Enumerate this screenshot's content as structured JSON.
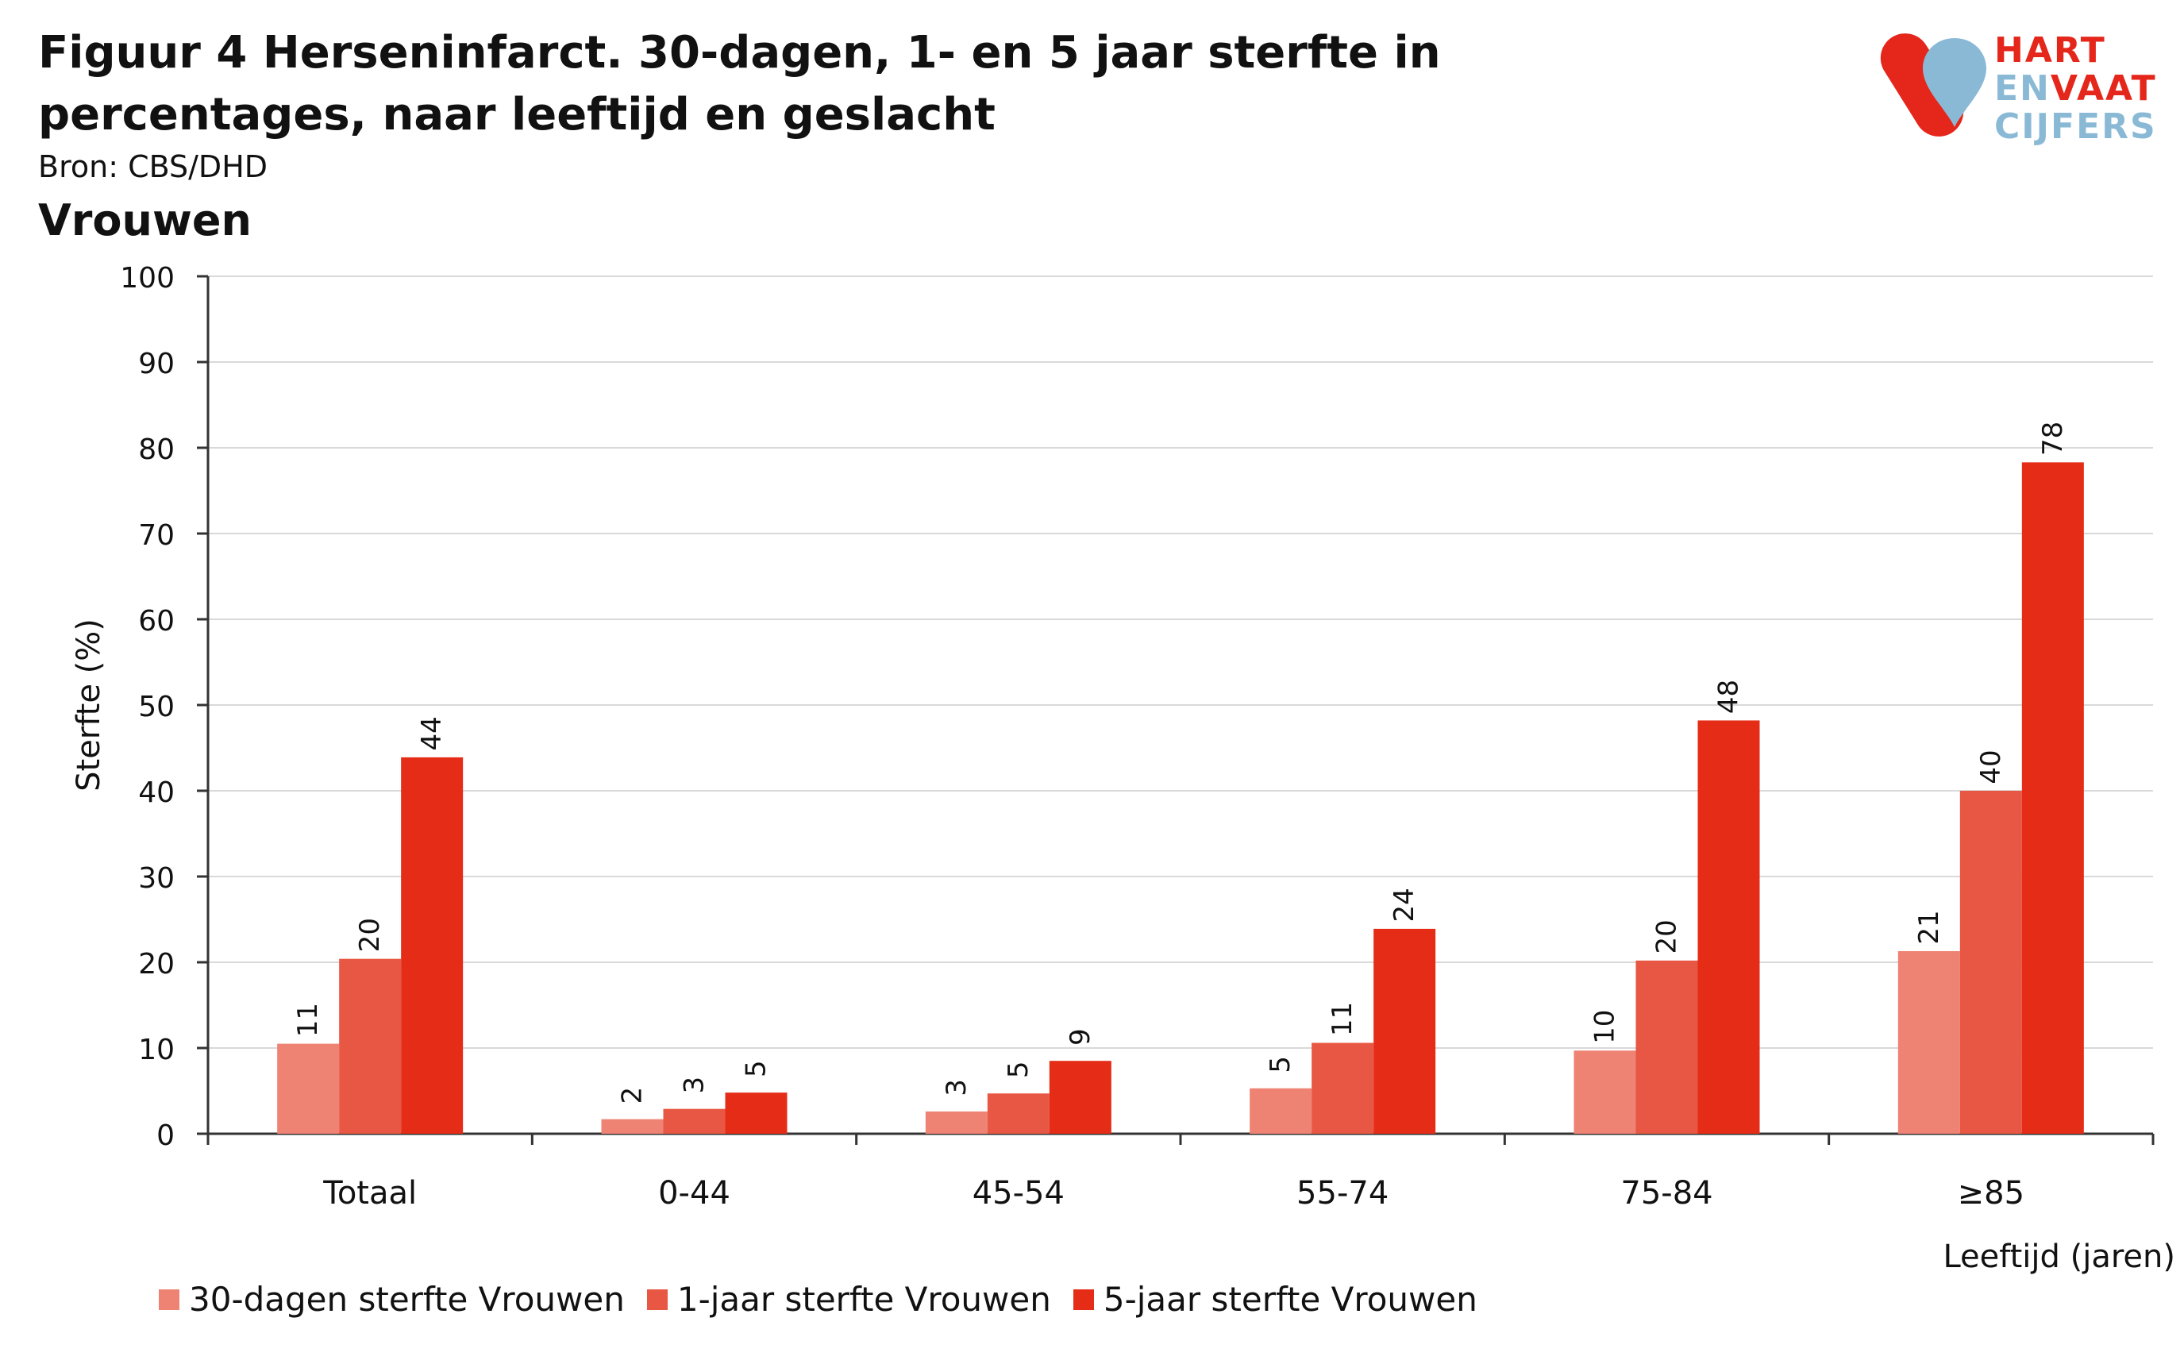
{
  "header": {
    "title": "Figuur 4 Herseninfarct. 30-dagen, 1- en 5 jaar sterfte in percentages, naar leeftijd en geslacht",
    "source": "Bron: CBS/DHD",
    "panel": "Vrouwen"
  },
  "logo": {
    "line1": "HART",
    "line2a": "EN",
    "line2b": "VAAT",
    "line3": "CIJFERS",
    "colors": {
      "red": "#e5261b",
      "blue": "#8ab9d6"
    }
  },
  "chart_data": {
    "type": "bar",
    "categories": [
      "Totaal",
      "0-44",
      "45-54",
      "55-74",
      "75-84",
      "≥85"
    ],
    "series": [
      {
        "name": "30-dagen sterfte Vrouwen",
        "values": [
          10.5,
          1.7,
          2.6,
          5.3,
          9.7,
          21.3
        ],
        "labels": [
          "11",
          "2",
          "3",
          "5",
          "10",
          "21"
        ],
        "color": "#ee8373"
      },
      {
        "name": "1-jaar sterfte Vrouwen",
        "values": [
          20.4,
          2.9,
          4.7,
          10.6,
          20.2,
          40.0
        ],
        "labels": [
          "20",
          "3",
          "5",
          "11",
          "20",
          "40"
        ],
        "color": "#e85743"
      },
      {
        "name": "5-jaar sterfte Vrouwen",
        "values": [
          43.9,
          4.8,
          8.5,
          23.9,
          48.2,
          78.3
        ],
        "labels": [
          "44",
          "5",
          "9",
          "24",
          "48",
          "78"
        ],
        "color": "#e52c17"
      }
    ],
    "ylabel": "Sterfte (%)",
    "xlabel": "Leeftijd (jaren)",
    "ylim": [
      0,
      100
    ],
    "yticks": [
      0,
      10,
      20,
      30,
      40,
      50,
      60,
      70,
      80,
      90,
      100
    ],
    "grid": true,
    "legend": "bottom-left"
  }
}
